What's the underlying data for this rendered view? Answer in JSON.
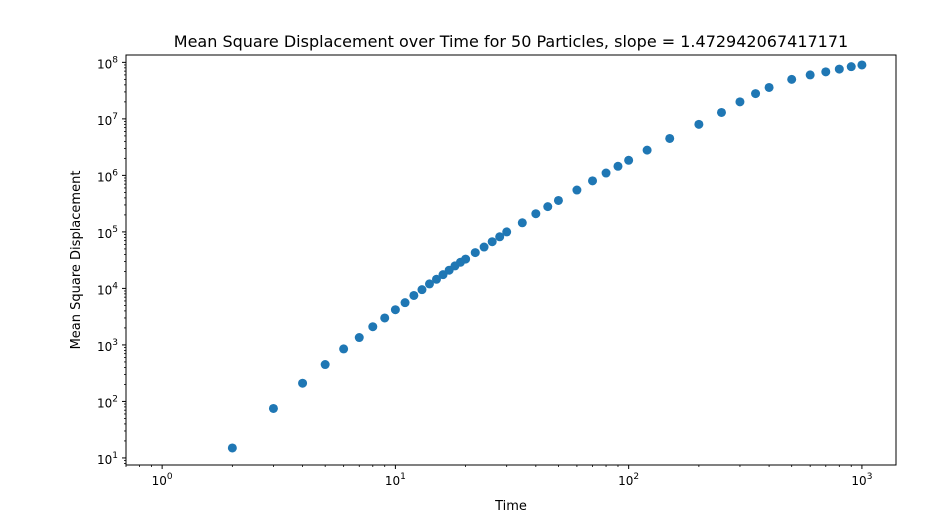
{
  "chart_data": {
    "type": "scatter",
    "title": "Mean Square Displacement over Time for 50 Particles, slope = 1.472942067417171",
    "xlabel": "Time",
    "ylabel": "Mean Square Displacement",
    "xscale": "log",
    "yscale": "log",
    "xlim": [
      0.7,
      1400
    ],
    "ylim": [
      7.5,
      135000000
    ],
    "grid": false,
    "legend": "none",
    "marker_color": "#1f77b4",
    "x_ticks": [
      {
        "base": "10",
        "exp": "0",
        "value": 1
      },
      {
        "base": "10",
        "exp": "1",
        "value": 10
      },
      {
        "base": "10",
        "exp": "2",
        "value": 100
      },
      {
        "base": "10",
        "exp": "3",
        "value": 1000
      }
    ],
    "y_ticks": [
      {
        "base": "10",
        "exp": "1",
        "value": 10
      },
      {
        "base": "10",
        "exp": "2",
        "value": 100
      },
      {
        "base": "10",
        "exp": "3",
        "value": 1000
      },
      {
        "base": "10",
        "exp": "4",
        "value": 10000
      },
      {
        "base": "10",
        "exp": "5",
        "value": 100000
      },
      {
        "base": "10",
        "exp": "6",
        "value": 1000000
      },
      {
        "base": "10",
        "exp": "7",
        "value": 10000000
      },
      {
        "base": "10",
        "exp": "8",
        "value": 100000000
      }
    ],
    "points": [
      [
        2,
        15
      ],
      [
        3,
        75
      ],
      [
        4,
        210
      ],
      [
        5,
        450
      ],
      [
        6,
        850
      ],
      [
        7,
        1350
      ],
      [
        8,
        2100
      ],
      [
        9,
        3000
      ],
      [
        10,
        4200
      ],
      [
        11,
        5600
      ],
      [
        12,
        7500
      ],
      [
        13,
        9500
      ],
      [
        14,
        12000
      ],
      [
        15,
        14500
      ],
      [
        16,
        17500
      ],
      [
        17,
        21000
      ],
      [
        18,
        25000
      ],
      [
        19,
        29000
      ],
      [
        20,
        33000
      ],
      [
        22,
        43000
      ],
      [
        24,
        54000
      ],
      [
        26,
        67000
      ],
      [
        28,
        82000
      ],
      [
        30,
        100000
      ],
      [
        35,
        145000
      ],
      [
        40,
        210000
      ],
      [
        45,
        280000
      ],
      [
        50,
        360000
      ],
      [
        60,
        550000
      ],
      [
        70,
        800000
      ],
      [
        80,
        1100000
      ],
      [
        90,
        1450000
      ],
      [
        100,
        1850000
      ],
      [
        120,
        2800000
      ],
      [
        150,
        4500000
      ],
      [
        200,
        8000000
      ],
      [
        250,
        13000000
      ],
      [
        300,
        20000000
      ],
      [
        350,
        28000000
      ],
      [
        400,
        36000000
      ],
      [
        500,
        50000000
      ],
      [
        600,
        60000000
      ],
      [
        700,
        68000000
      ],
      [
        800,
        76000000
      ],
      [
        900,
        84000000
      ],
      [
        1000,
        90000000
      ]
    ]
  }
}
